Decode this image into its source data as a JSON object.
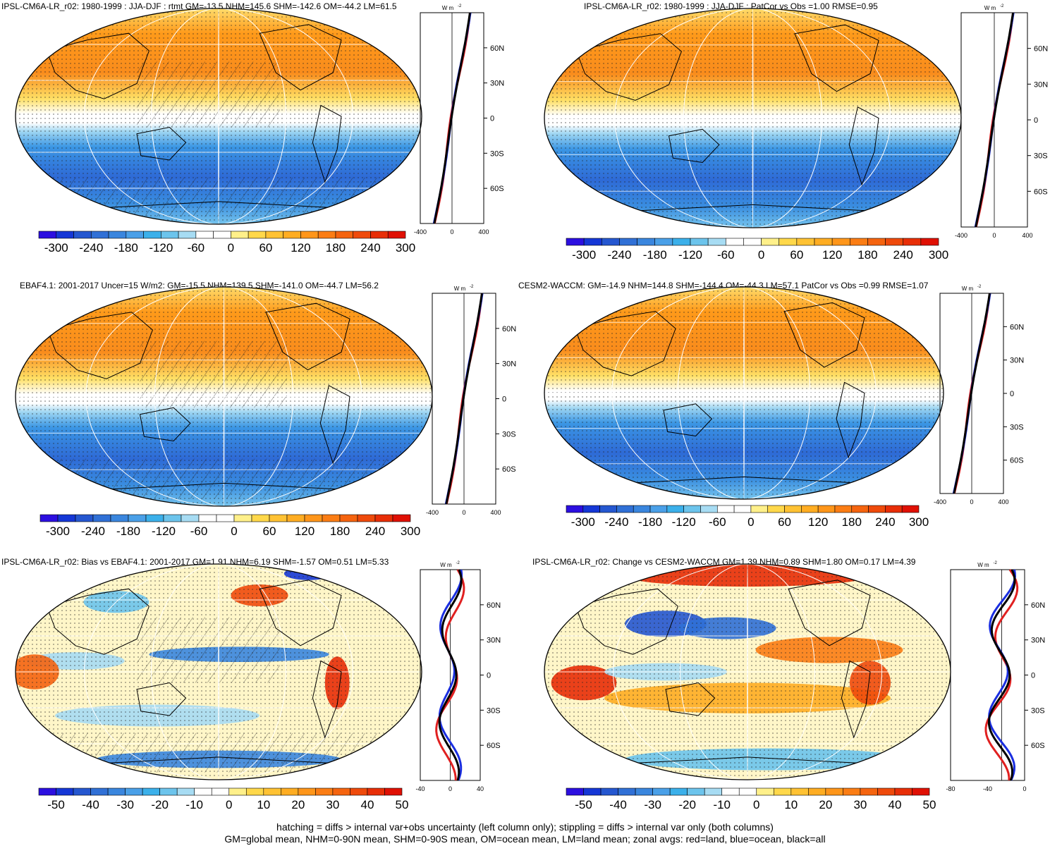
{
  "panels": [
    {
      "id": "p1",
      "title": "IPSL-CM6A-LR_r02: 1980-1999 : JJA-DJF : rtmt GM=-13.5 NHM=145.6 SHM=-142.6 OM=-44.2 LM=61.5",
      "kind": "field",
      "hatch": true
    },
    {
      "id": "p2",
      "title": "IPSL-CM6A-LR_r02: 1980-1999 : JJA-DJF : PatCor vs Obs =1.00 RMSE=0.95",
      "kind": "field",
      "hatch": false
    },
    {
      "id": "p3",
      "title": "EBAF4.1: 2001-2017 Uncer=15 W/m2: GM=-15.5 NHM=139.5 SHM=-141.0 OM=-44.7 LM=56.2",
      "kind": "field",
      "hatch": true
    },
    {
      "id": "p4",
      "title": "CESM2-WACCM: GM=-14.9 NHM=144.8 SHM=-144.4 OM=-44.3 LM=57.1 PatCor vs Obs =0.99 RMSE=1.07",
      "kind": "field",
      "hatch": false
    },
    {
      "id": "p5",
      "title": "IPSL-CM6A-LR_r02: Bias vs EBAF4.1: 2001-2017 GM=1.91 NHM=6.19 SHM=-1.57 OM=0.51 LM=5.33",
      "kind": "diff",
      "hatch": true
    },
    {
      "id": "p6",
      "title": "IPSL-CM6A-LR_r02: Change vs CESM2-WACCM GM=1.39 NHM=0.89 SHM=1.80 OM=0.17 LM=4.39",
      "kind": "diff",
      "hatch": false
    }
  ],
  "units_label": "W m",
  "units_exp": "-2",
  "lat_ticks": [
    "60N",
    "30N",
    "0",
    "30S",
    "60S"
  ],
  "zonal_x_ticks": {
    "p1": [
      "-400",
      "0",
      "400"
    ],
    "p2": [
      "-400",
      "0",
      "400"
    ],
    "p3": [
      "-400",
      "0",
      "400"
    ],
    "p4": [
      "-400",
      "0",
      "400"
    ],
    "p5": [
      "-40",
      "0",
      "40"
    ],
    "p6": [
      "-80",
      "-40",
      "0"
    ]
  },
  "colorbar_field": [
    "-300",
    "-240",
    "-180",
    "-120",
    "-60",
    "0",
    "60",
    "120",
    "180",
    "240",
    "300"
  ],
  "colorbar_diff": [
    "-50",
    "-40",
    "-30",
    "-20",
    "-10",
    "0",
    "10",
    "20",
    "30",
    "40",
    "50"
  ],
  "colors": {
    "scale": [
      "#2c0fe0",
      "#1537d6",
      "#2557d0",
      "#3070d6",
      "#3a86de",
      "#4aa0e8",
      "#3bb0ea",
      "#6cc4ec",
      "#a7dcf3",
      "#ffffff",
      "#ffffff",
      "#fff08a",
      "#ffd84a",
      "#ffc233",
      "#ffad22",
      "#ff961a",
      "#fb7d14",
      "#f5640f",
      "#ef4a0b",
      "#e82e07",
      "#e01004"
    ],
    "land": "#e02020",
    "ocean": "#1a2ee0",
    "all": "#000000"
  },
  "caption": {
    "line1": "hatching = diffs > internal var+obs uncertainty (left column only); stippling = diffs > internal var only (both columns)",
    "line2": "GM=global mean, NHM=0-90N mean, SHM=0-90S mean, OM=ocean mean, LM=land mean; zonal avgs: red=land, blue=ocean, black=all"
  }
}
